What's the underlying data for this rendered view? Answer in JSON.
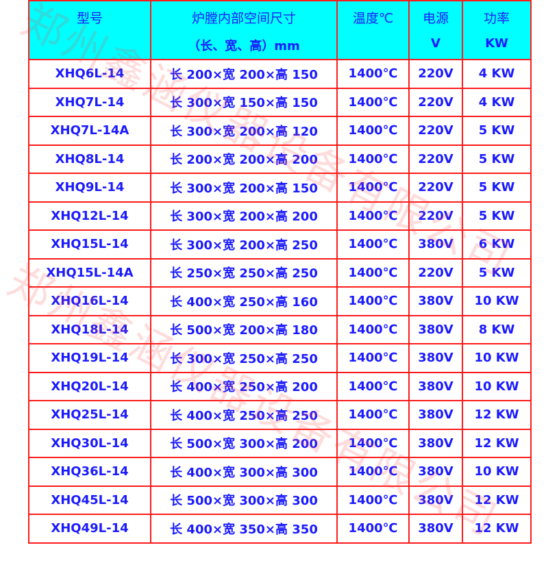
{
  "watermark": "郑州鑫涵仪器设备有限公司",
  "colors": {
    "header_bg": "#00ffff",
    "border": "#ff1a1a",
    "text": "#1a1aff"
  },
  "header": {
    "model": "型号",
    "size_line1": "炉膛内部空间尺寸",
    "size_line2": "（长、宽、高）mm",
    "temp": "温度℃",
    "power_line1": "电源",
    "power_line2": "V",
    "watt_line1": "功率",
    "watt_line2": "KW"
  },
  "rows": [
    {
      "model": "XHQ6L-14",
      "size": "长 200×宽 200×高 150",
      "temp": "1400℃",
      "voltage": "220V",
      "power": "4 KW"
    },
    {
      "model": "XHQ7L-14",
      "size": "长 300×宽 150×高 150",
      "temp": "1400℃",
      "voltage": "220V",
      "power": "4 KW"
    },
    {
      "model": "XHQ7L-14A",
      "size": "长 300×宽 200×高 120",
      "temp": "1400℃",
      "voltage": "220V",
      "power": "5 KW"
    },
    {
      "model": "XHQ8L-14",
      "size": "长 200×宽 200×高 200",
      "temp": "1400℃",
      "voltage": "220V",
      "power": "5 KW"
    },
    {
      "model": "XHQ9L-14",
      "size": "长 300×宽 200×高 150",
      "temp": "1400℃",
      "voltage": "220V",
      "power": "5 KW"
    },
    {
      "model": "XHQ12L-14",
      "size": "长 300×宽 200×高 200",
      "temp": "1400℃",
      "voltage": "220V",
      "power": "5 KW"
    },
    {
      "model": "XHQ15L-14",
      "size": "长 300×宽 200×高 250",
      "temp": "1400℃",
      "voltage": "380V",
      "power": "6 KW"
    },
    {
      "model": "XHQ15L-14A",
      "size": "长 250×宽 250×高 250",
      "temp": "1400℃",
      "voltage": "220V",
      "power": "5 KW"
    },
    {
      "model": "XHQ16L-14",
      "size": "长 400×宽 250×高 160",
      "temp": "1400℃",
      "voltage": "380V",
      "power": "10 KW"
    },
    {
      "model": "XHQ18L-14",
      "size": "长 500×宽 200×高 180",
      "temp": "1400℃",
      "voltage": "380V",
      "power": "8 KW"
    },
    {
      "model": "XHQ19L-14",
      "size": "长 300×宽 250×高 250",
      "temp": "1400℃",
      "voltage": "380V",
      "power": "10 KW"
    },
    {
      "model": "XHQ20L-14",
      "size": "长 400×宽 250×高 200",
      "temp": "1400℃",
      "voltage": "380V",
      "power": "10 KW"
    },
    {
      "model": "XHQ25L-14",
      "size": "长 400×宽 250×高 250",
      "temp": "1400℃",
      "voltage": "380V",
      "power": "12 KW"
    },
    {
      "model": "XHQ30L-14",
      "size": "长 500×宽 300×高 200",
      "temp": "1400℃",
      "voltage": "380V",
      "power": "12 KW"
    },
    {
      "model": "XHQ36L-14",
      "size": "长 400×宽 300×高 300",
      "temp": "1400℃",
      "voltage": "380V",
      "power": "10 KW"
    },
    {
      "model": "XHQ45L-14",
      "size": "长 500×宽 300×高 300",
      "temp": "1400℃",
      "voltage": "380V",
      "power": "12 KW"
    },
    {
      "model": "XHQ49L-14",
      "size": "长 400×宽 350×高 350",
      "temp": "1400℃",
      "voltage": "380V",
      "power": "12 KW"
    }
  ]
}
